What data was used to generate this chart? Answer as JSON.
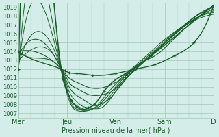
{
  "bg_color": "#d4ede8",
  "grid_color": "#a0c8b8",
  "line_color": "#1a5c2a",
  "xlabel": "Pression niveau de la mer( hPa )",
  "ylim": [
    1006.5,
    1019.5
  ],
  "yticks": [
    1007,
    1008,
    1009,
    1010,
    1011,
    1012,
    1013,
    1014,
    1015,
    1016,
    1017,
    1018,
    1019
  ],
  "xtick_labels": [
    "Mer",
    "Jeu",
    "Ven",
    "Sam",
    "D"
  ],
  "xtick_positions": [
    0,
    0.25,
    0.5,
    0.75,
    1.0
  ],
  "lines": [
    {
      "x": [
        0.0,
        0.22,
        0.24,
        0.26,
        0.3,
        0.38,
        0.5,
        0.6,
        0.7,
        0.8,
        0.9,
        1.0
      ],
      "y": [
        1014.0,
        1012.0,
        1011.8,
        1011.6,
        1011.5,
        1011.3,
        1011.5,
        1012.0,
        1012.5,
        1013.5,
        1015.0,
        1019.2
      ],
      "marker": true,
      "lw": 1.0
    },
    {
      "x": [
        0.0,
        0.22,
        0.24,
        0.26,
        0.3,
        0.35,
        0.4,
        0.45,
        0.5,
        0.55,
        0.6,
        0.7,
        0.8,
        0.9,
        1.0
      ],
      "y": [
        1014.0,
        1012.0,
        1011.5,
        1011.0,
        1010.5,
        1010.0,
        1009.8,
        1010.0,
        1010.5,
        1011.2,
        1012.3,
        1013.5,
        1015.5,
        1017.5,
        1019.2
      ],
      "marker": false,
      "lw": 0.8
    },
    {
      "x": [
        0.0,
        0.22,
        0.24,
        0.26,
        0.3,
        0.35,
        0.4,
        0.45,
        0.48,
        0.55,
        0.65,
        0.75,
        0.85,
        1.0
      ],
      "y": [
        1014.0,
        1012.0,
        1011.3,
        1010.5,
        1009.8,
        1009.2,
        1009.0,
        1009.2,
        1009.5,
        1011.0,
        1013.0,
        1015.0,
        1017.0,
        1019.1
      ],
      "marker": false,
      "lw": 0.8
    },
    {
      "x": [
        0.0,
        0.22,
        0.24,
        0.26,
        0.3,
        0.35,
        0.38,
        0.42,
        0.46,
        0.52,
        0.6,
        0.7,
        0.8,
        0.9,
        1.0
      ],
      "y": [
        1013.5,
        1012.0,
        1011.0,
        1010.0,
        1009.0,
        1008.3,
        1007.9,
        1008.0,
        1008.5,
        1010.0,
        1012.0,
        1014.0,
        1016.0,
        1017.8,
        1019.0
      ],
      "marker": false,
      "lw": 0.8
    },
    {
      "x": [
        0.0,
        0.22,
        0.24,
        0.26,
        0.29,
        0.32,
        0.36,
        0.4,
        0.44,
        0.5,
        0.58,
        0.68,
        0.78,
        0.88,
        1.0
      ],
      "y": [
        1013.0,
        1012.0,
        1010.8,
        1009.5,
        1008.5,
        1007.9,
        1007.6,
        1007.5,
        1007.8,
        1009.5,
        1011.5,
        1013.5,
        1015.5,
        1017.3,
        1018.8
      ],
      "marker": false,
      "lw": 0.7
    },
    {
      "x": [
        0.0,
        0.22,
        0.24,
        0.26,
        0.29,
        0.32,
        0.35,
        0.38,
        0.42,
        0.48,
        0.56,
        0.66,
        0.76,
        0.86,
        1.0
      ],
      "y": [
        1012.5,
        1012.0,
        1010.5,
        1009.0,
        1008.0,
        1007.6,
        1007.4,
        1007.5,
        1007.8,
        1009.2,
        1011.2,
        1013.2,
        1015.2,
        1017.0,
        1018.6
      ],
      "marker": false,
      "lw": 0.7
    },
    {
      "x": [
        0.0,
        0.22,
        0.24,
        0.26,
        0.28,
        0.31,
        0.34,
        0.37,
        0.4,
        0.46,
        0.54,
        0.64,
        0.74,
        0.84,
        1.0
      ],
      "y": [
        1012.0,
        1012.0,
        1010.3,
        1008.8,
        1007.8,
        1007.4,
        1007.3,
        1007.4,
        1007.7,
        1009.0,
        1011.0,
        1013.0,
        1015.0,
        1016.8,
        1018.4
      ],
      "marker": false,
      "lw": 0.7
    },
    {
      "x": [
        0.0,
        0.22,
        0.24,
        0.26,
        0.28,
        0.3,
        0.33,
        0.36,
        0.39,
        0.44,
        0.52,
        0.62,
        0.72,
        0.82,
        1.0
      ],
      "y": [
        1011.5,
        1012.0,
        1010.0,
        1008.5,
        1007.6,
        1007.3,
        1007.2,
        1007.3,
        1007.6,
        1008.8,
        1010.8,
        1012.8,
        1014.8,
        1016.5,
        1018.2
      ],
      "marker": false,
      "lw": 0.7
    },
    {
      "x": [
        0.0,
        0.22,
        0.23,
        0.25,
        0.27,
        0.3,
        0.33,
        0.36,
        0.39,
        0.44,
        0.55,
        0.68,
        0.82,
        1.0
      ],
      "y": [
        1012.0,
        1012.0,
        1010.8,
        1009.5,
        1008.5,
        1007.7,
        1007.4,
        1007.6,
        1008.0,
        1009.5,
        1011.5,
        1013.5,
        1016.0,
        1019.2
      ],
      "marker": true,
      "lw": 1.2
    }
  ]
}
